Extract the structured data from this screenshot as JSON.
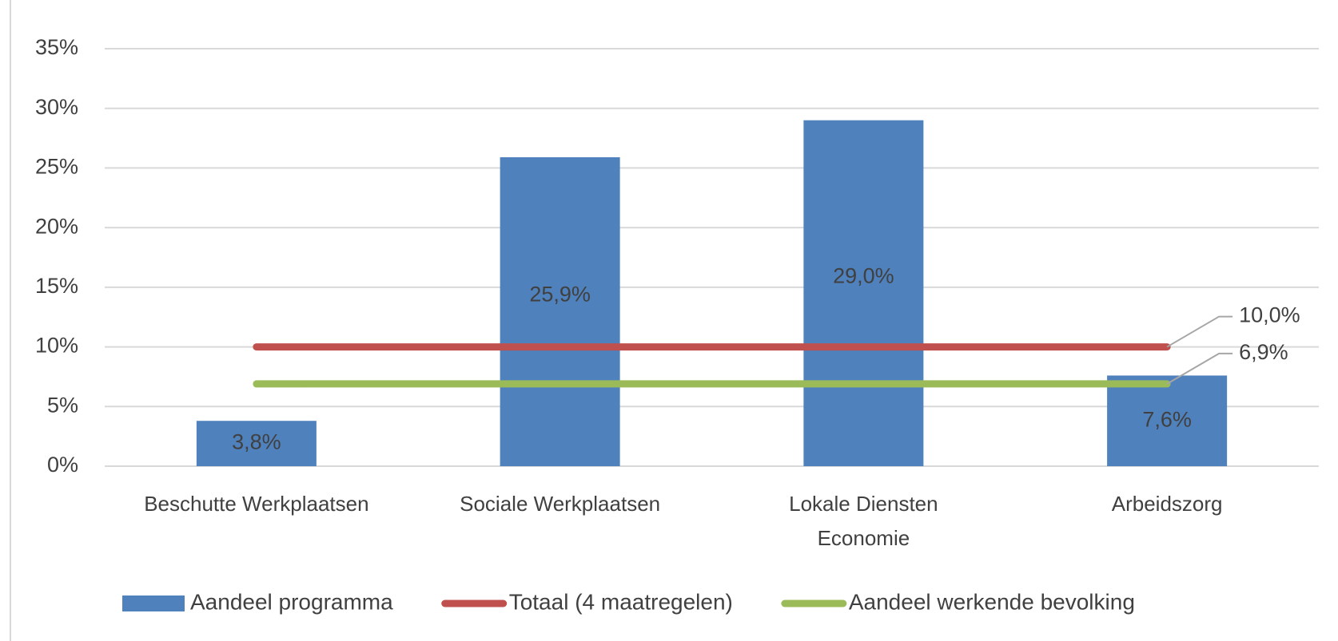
{
  "chart_data": {
    "type": "bar",
    "categories": [
      "Beschutte Werkplaatsen",
      "Sociale Werkplaatsen",
      "Lokale Diensten Economie",
      "Arbeidszorg"
    ],
    "series": [
      {
        "name": "Aandeel programma",
        "type": "bar",
        "color": "#4f81bd",
        "values": [
          3.8,
          25.9,
          29.0,
          7.6
        ],
        "value_labels": [
          "3,8%",
          "25,9%",
          "29,0%",
          "7,6%"
        ]
      },
      {
        "name": "Totaal (4 maatregelen)",
        "type": "line",
        "color": "#c0504d",
        "values": [
          10.0,
          10.0,
          10.0,
          10.0
        ],
        "value_labels": [
          null,
          null,
          null,
          "10,0%"
        ]
      },
      {
        "name": "Aandeel werkende bevolking",
        "type": "line",
        "color": "#9bbb59",
        "values": [
          6.9,
          6.9,
          6.9,
          6.9
        ],
        "value_labels": [
          null,
          null,
          null,
          "6,9%"
        ]
      }
    ],
    "ylim": [
      0,
      35
    ],
    "yticks": [
      {
        "value": 0,
        "label": "0%"
      },
      {
        "value": 5,
        "label": "5%"
      },
      {
        "value": 10,
        "label": "10%"
      },
      {
        "value": 15,
        "label": "15%"
      },
      {
        "value": 20,
        "label": "20%"
      },
      {
        "value": 25,
        "label": "25%"
      },
      {
        "value": 30,
        "label": "30%"
      },
      {
        "value": 35,
        "label": "35%"
      }
    ],
    "grid": true,
    "legend": "bottom"
  }
}
